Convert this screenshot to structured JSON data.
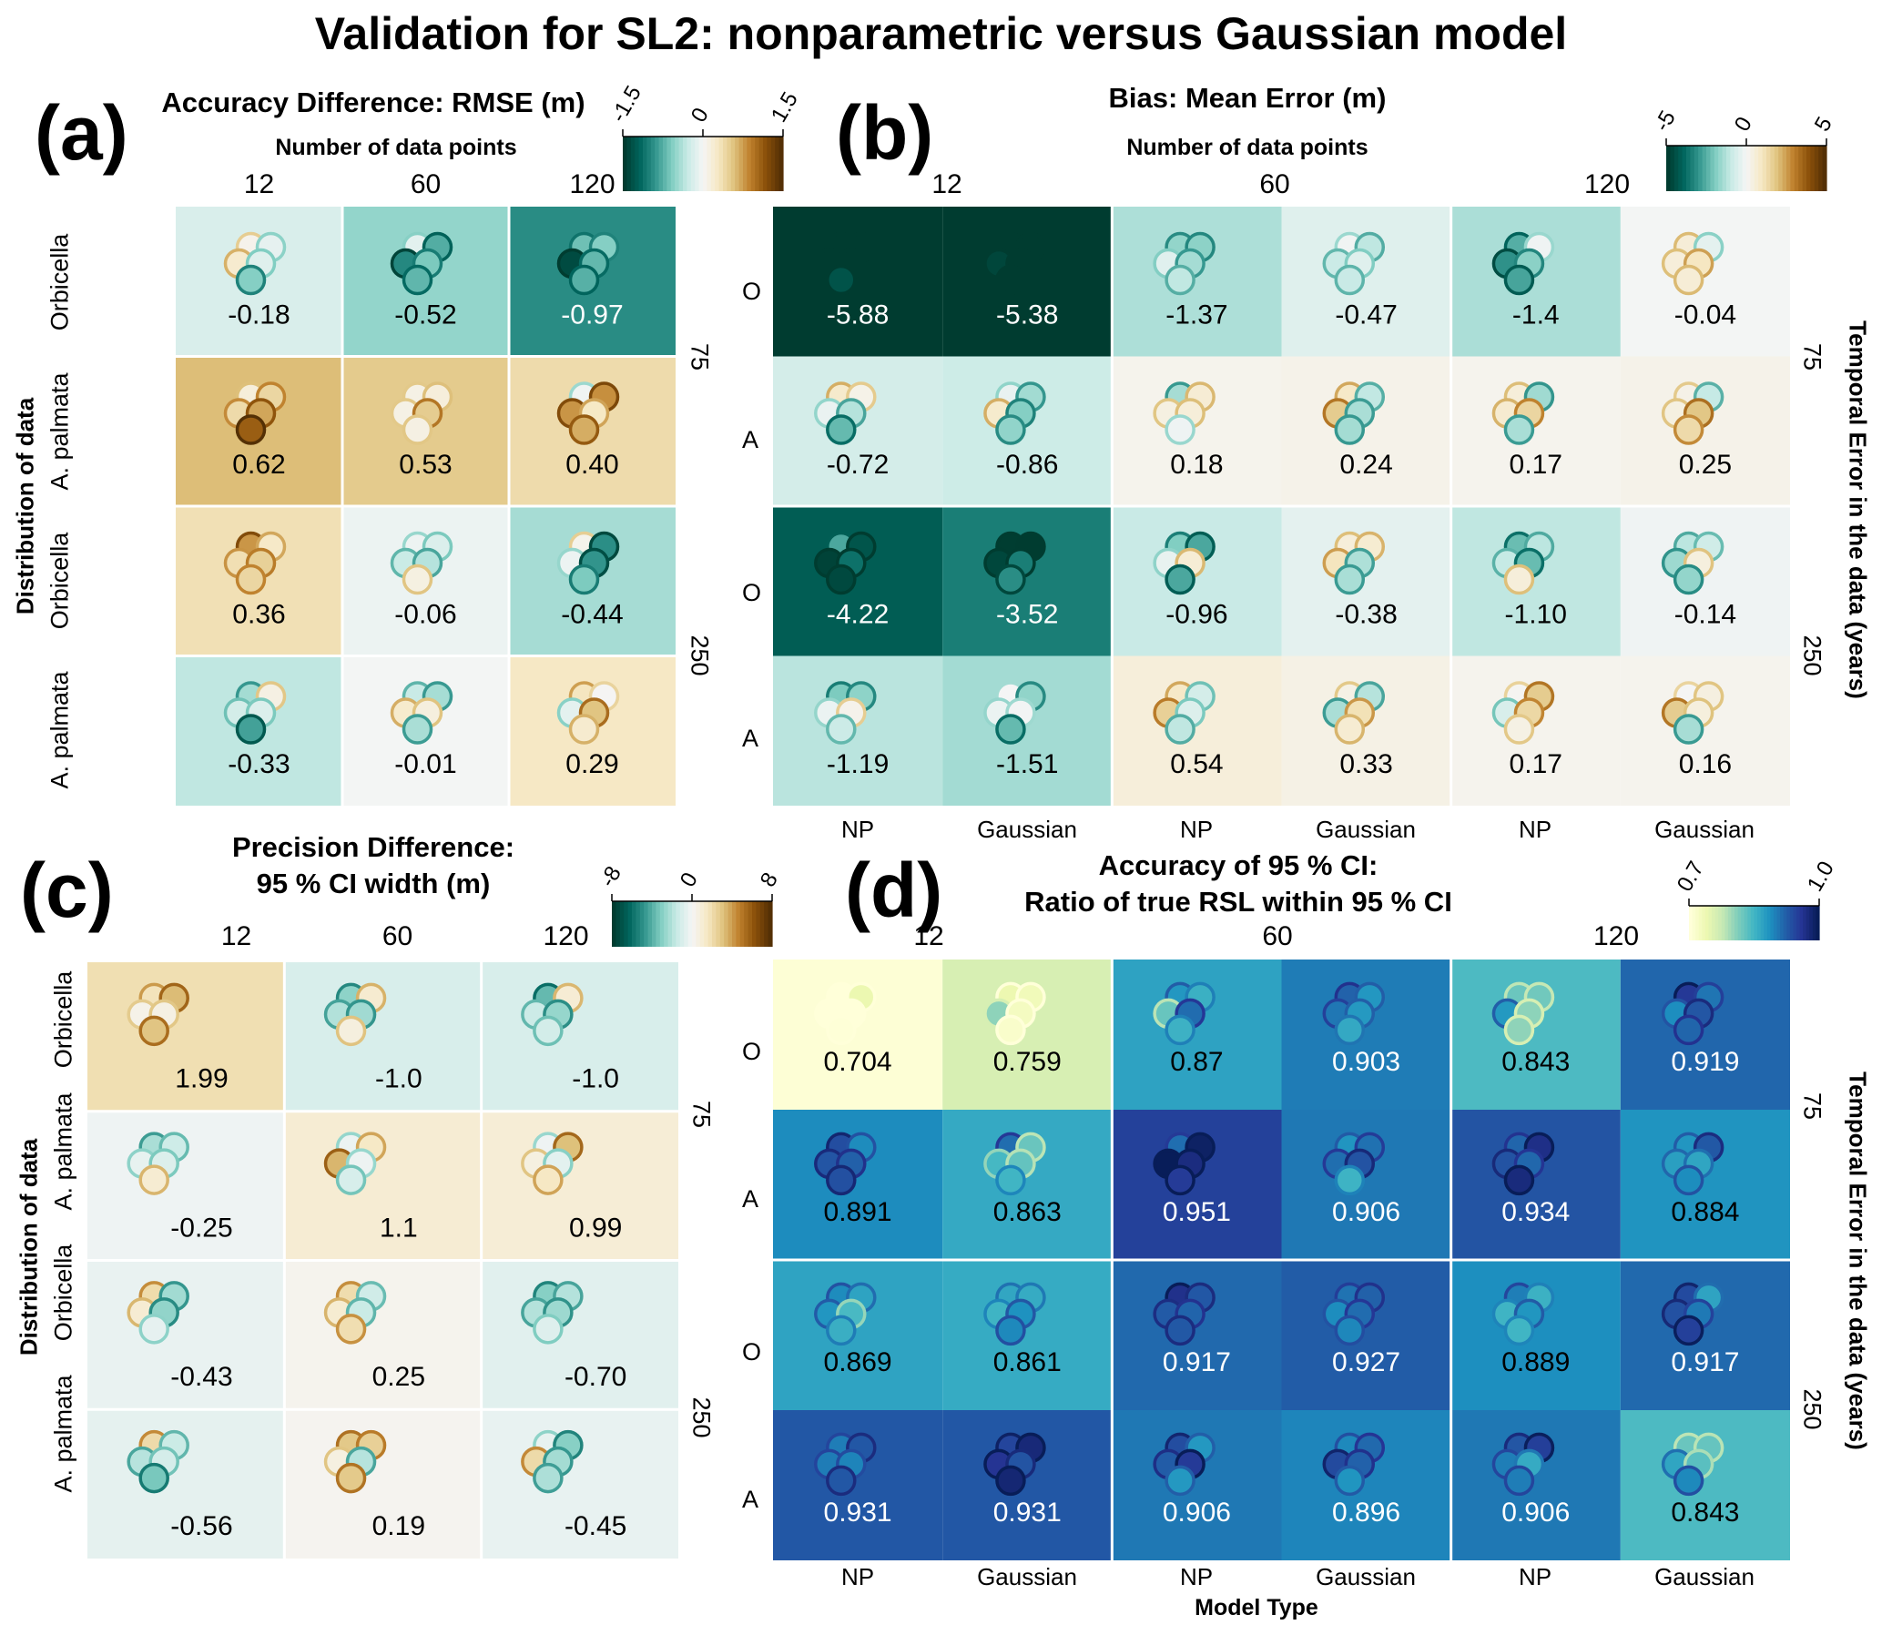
{
  "title": "Validation for SL2: nonparametric versus Gaussian model",
  "chart_data": [
    {
      "id": "a",
      "type": "heatmap",
      "panel_label": "(a)",
      "title": "Accuracy Difference: RMSE (m)",
      "xlabel": "Number of data points",
      "ylabel": "Distribution of data",
      "right_label": "",
      "x_categories": [
        "12",
        "60",
        "120"
      ],
      "y_categories": [
        "Orbicella",
        "A. palmata",
        "Orbicella",
        "A. palmata"
      ],
      "y_groups": [
        "75",
        "75",
        "250",
        "250"
      ],
      "colorbar": {
        "scheme": "BrBG-reversed",
        "range": [
          -1.5,
          1.5
        ],
        "ticks": [
          "-1.5",
          "0",
          "1.5"
        ]
      },
      "values": [
        [
          -0.18,
          -0.52,
          -0.97
        ],
        [
          0.62,
          0.53,
          0.4
        ],
        [
          0.36,
          -0.06,
          -0.44
        ],
        [
          -0.33,
          -0.01,
          0.29
        ]
      ],
      "labels": [
        [
          "-0.18",
          "-0.52",
          "-0.97"
        ],
        [
          "0.62",
          "0.53",
          "0.40"
        ],
        [
          "0.36",
          "-0.06",
          "-0.44"
        ],
        [
          "-0.33",
          "-0.01",
          "0.29"
        ]
      ]
    },
    {
      "id": "b",
      "type": "heatmap",
      "panel_label": "(b)",
      "title": "Bias: Mean Error (m)",
      "xlabel": "Number of data points",
      "ylabel": "",
      "right_label": "Temporal Error in the data (years)",
      "x_groups": [
        "12",
        "60",
        "120"
      ],
      "x_categories": [
        "NP",
        "Gaussian",
        "NP",
        "Gaussian",
        "NP",
        "Gaussian"
      ],
      "y_categories": [
        "O",
        "A",
        "O",
        "A"
      ],
      "y_groups": [
        "75",
        "75",
        "250",
        "250"
      ],
      "colorbar": {
        "scheme": "BrBG-reversed",
        "range": [
          -5,
          5
        ],
        "ticks": [
          "-5",
          "0",
          "5"
        ]
      },
      "values": [
        [
          -5.88,
          -5.38,
          -1.37,
          -0.47,
          -1.4,
          -0.04
        ],
        [
          -0.72,
          -0.86,
          0.18,
          0.24,
          0.17,
          0.25
        ],
        [
          -4.22,
          -3.52,
          -0.96,
          -0.38,
          -1.1,
          -0.14
        ],
        [
          -1.19,
          -1.51,
          0.54,
          0.33,
          0.17,
          0.16
        ]
      ],
      "labels": [
        [
          "-5.88",
          "-5.38",
          "-1.37",
          "-0.47",
          "-1.4",
          "-0.04"
        ],
        [
          "-0.72",
          "-0.86",
          "0.18",
          "0.24",
          "0.17",
          "0.25"
        ],
        [
          "-4.22",
          "-3.52",
          "-0.96",
          "-0.38",
          "-1.10",
          "-0.14"
        ],
        [
          "-1.19",
          "-1.51",
          "0.54",
          "0.33",
          "0.17",
          "0.16"
        ]
      ]
    },
    {
      "id": "c",
      "type": "heatmap",
      "panel_label": "(c)",
      "title": "Precision Difference:",
      "title2": "95 % CI width (m)",
      "xlabel": "",
      "ylabel": "Distribution of data",
      "right_label": "",
      "x_categories": [
        "12",
        "60",
        "120"
      ],
      "y_categories": [
        "Orbicella",
        "A. palmata",
        "Orbicella",
        "A. palmata"
      ],
      "y_groups": [
        "75",
        "75",
        "250",
        "250"
      ],
      "colorbar": {
        "scheme": "BrBG-reversed",
        "range": [
          -8,
          8
        ],
        "ticks": [
          "-8",
          "0",
          "8"
        ]
      },
      "values": [
        [
          1.99,
          -1.0,
          -1.0
        ],
        [
          -0.25,
          1.1,
          0.99
        ],
        [
          -0.43,
          0.25,
          -0.7
        ],
        [
          -0.56,
          0.19,
          -0.45
        ]
      ],
      "labels": [
        [
          "1.99",
          "-1.0",
          "-1.0"
        ],
        [
          "-0.25",
          "1.1",
          "0.99"
        ],
        [
          "-0.43",
          "0.25",
          "-0.70"
        ],
        [
          "-0.56",
          "0.19",
          "-0.45"
        ]
      ]
    },
    {
      "id": "d",
      "type": "heatmap",
      "panel_label": "(d)",
      "title": "Accuracy of 95 % CI:",
      "title2": "Ratio of true RSL within 95 % CI",
      "xlabel": "Model Type",
      "ylabel": "",
      "right_label": "Temporal Error in the data (years)",
      "x_groups": [
        "12",
        "60",
        "120"
      ],
      "x_categories": [
        "NP",
        "Gaussian",
        "NP",
        "Gaussian",
        "NP",
        "Gaussian"
      ],
      "y_categories": [
        "O",
        "A",
        "O",
        "A"
      ],
      "y_groups": [
        "75",
        "75",
        "250",
        "250"
      ],
      "colorbar": {
        "scheme": "YlGnBu",
        "range": [
          0.7,
          1.0
        ],
        "ticks": [
          "0.7",
          "1.0"
        ]
      },
      "values": [
        [
          0.704,
          0.759,
          0.87,
          0.903,
          0.843,
          0.919
        ],
        [
          0.891,
          0.863,
          0.951,
          0.906,
          0.934,
          0.884
        ],
        [
          0.869,
          0.861,
          0.917,
          0.927,
          0.889,
          0.917
        ],
        [
          0.931,
          0.931,
          0.906,
          0.896,
          0.906,
          0.843
        ]
      ],
      "labels": [
        [
          "0.704",
          "0.759",
          "0.87",
          "0.903",
          "0.843",
          "0.919"
        ],
        [
          "0.891",
          "0.863",
          "0.951",
          "0.906",
          "0.934",
          "0.884"
        ],
        [
          "0.869",
          "0.861",
          "0.917",
          "0.927",
          "0.889",
          "0.917"
        ],
        [
          "0.931",
          "0.931",
          "0.906",
          "0.896",
          "0.906",
          "0.843"
        ]
      ]
    }
  ]
}
